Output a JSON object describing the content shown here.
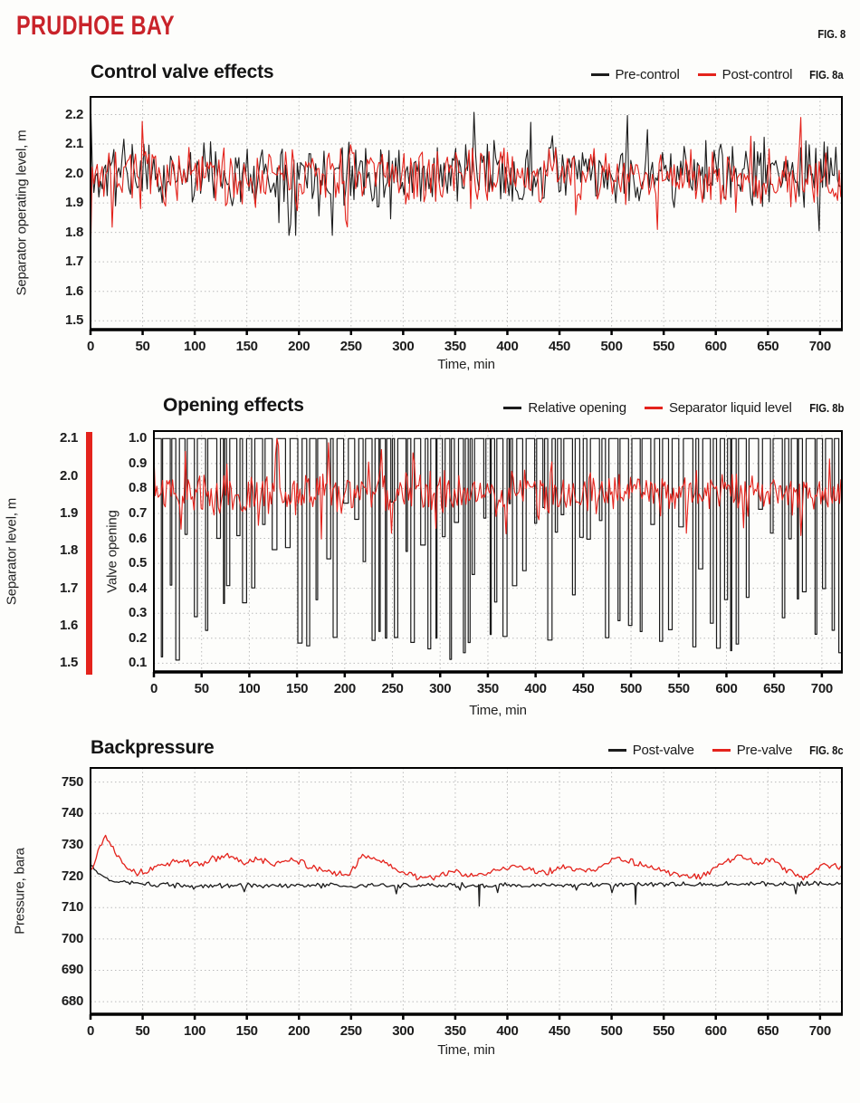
{
  "header": {
    "title": "PRUDHOE BAY",
    "fig_label": "FIG. 8"
  },
  "colors": {
    "brand_red": "#c9232a",
    "series_black": "#1c1c1c",
    "series_red": "#e4231c",
    "grid": "#bcbcbc",
    "axis": "#000000"
  },
  "chart_data": [
    {
      "id": "fig8a",
      "type": "line",
      "title": "Control valve effects",
      "fig_label": "FIG. 8a",
      "xlabel": "Time, min",
      "ylabel": "Separator operating level, m",
      "x_ticks": [
        0,
        50,
        100,
        150,
        200,
        250,
        300,
        350,
        400,
        450,
        500,
        550,
        600,
        650,
        700
      ],
      "x_range": [
        0,
        721
      ],
      "y_ticks": [
        "2.2",
        "2.1",
        "2.0",
        "1.9",
        "1.8",
        "1.7",
        "1.6",
        "1.5"
      ],
      "y_range": [
        1.47,
        2.26
      ],
      "grid": true,
      "legend_position": "top-right",
      "legend": [
        {
          "label": "Pre-control",
          "color": "#1c1c1c"
        },
        {
          "label": "Post-control",
          "color": "#e4231c"
        }
      ],
      "series": [
        {
          "name": "Pre-control",
          "color": "#1c1c1c",
          "width": 1.1,
          "gen": {
            "kind": "noisy",
            "seed": 11,
            "step": 1.6,
            "base": 2.0,
            "noise": 0.08,
            "spike_prob": 0.06,
            "spike_amp": 0.16,
            "start": 2.26,
            "clip": [
              1.79,
              2.26
            ]
          }
        },
        {
          "name": "Post-control",
          "color": "#e4231c",
          "width": 1.1,
          "gen": {
            "kind": "noisy",
            "seed": 7,
            "step": 1.6,
            "base": 1.99,
            "noise": 0.075,
            "spike_prob": 0.05,
            "spike_amp": 0.13,
            "start": 1.7,
            "clip": [
              1.81,
              2.21
            ]
          }
        }
      ]
    },
    {
      "id": "fig8b",
      "type": "line",
      "title": "Opening effects",
      "fig_label": "FIG. 8b",
      "xlabel": "Time, min",
      "ylabel": "Valve opening",
      "ylabel2": "Separator level, m",
      "x_ticks": [
        0,
        50,
        100,
        150,
        200,
        250,
        300,
        350,
        400,
        450,
        500,
        550,
        600,
        650,
        700
      ],
      "x_range": [
        0,
        721
      ],
      "y_ticks": [
        "1.0",
        "0.9",
        "0.8",
        "0.7",
        "0.6",
        "0.5",
        "0.4",
        "0.3",
        "0.2",
        "0.1"
      ],
      "y_range": [
        0.065,
        1.03
      ],
      "y2_ticks": [
        "2.1",
        "2.0",
        "1.9",
        "1.8",
        "1.7",
        "1.6",
        "1.5"
      ],
      "y2_map": {
        "m_min": 1.5,
        "m_max": 2.1,
        "v_min": 0.1,
        "v_max": 1.0
      },
      "grid": true,
      "legend_position": "top-right",
      "legend": [
        {
          "label": "Relative opening",
          "color": "#1c1c1c"
        },
        {
          "label": "Separator liquid level",
          "color": "#e4231c"
        }
      ],
      "series": [
        {
          "name": "Relative opening",
          "color": "#1c1c1c",
          "width": 1.2,
          "gen": {
            "kind": "valve",
            "seed": 3,
            "high": 1.0,
            "dip_min": 0.1,
            "dip_max": 0.75,
            "hold_min": 2,
            "hold_max": 10,
            "dip_len_min": 1,
            "dip_len_max": 5
          }
        },
        {
          "name": "Separator liquid level",
          "color": "#e4231c",
          "width": 1.1,
          "unit": "m",
          "gen": {
            "kind": "noisy",
            "seed": 5,
            "step": 1.5,
            "base": 1.955,
            "noise": 0.045,
            "spike_prob": 0.07,
            "spike_amp": 0.09,
            "start": 2.06,
            "clip": [
              1.79,
              2.1
            ]
          }
        }
      ]
    },
    {
      "id": "fig8c",
      "type": "line",
      "title": "Backpressure",
      "fig_label": "FIG. 8c",
      "xlabel": "Time, min",
      "ylabel": "Pressure, bara",
      "x_ticks": [
        0,
        50,
        100,
        150,
        200,
        250,
        300,
        350,
        400,
        450,
        500,
        550,
        600,
        650,
        700
      ],
      "x_range": [
        0,
        721
      ],
      "y_ticks": [
        "750",
        "740",
        "730",
        "720",
        "710",
        "700",
        "690",
        "680"
      ],
      "y_range": [
        676,
        754.5
      ],
      "grid": true,
      "legend_position": "top-right",
      "legend": [
        {
          "label": "Post-valve",
          "color": "#1c1c1c"
        },
        {
          "label": "Pre-valve",
          "color": "#e4231c"
        }
      ],
      "series": [
        {
          "name": "Post-valve",
          "color": "#1c1c1c",
          "width": 1.3,
          "gen": {
            "kind": "noisy-keypoints",
            "seed": 9,
            "step": 1.8,
            "noise": 0.6,
            "spike_prob": 0.03,
            "spike_amp": 2.2,
            "spike_dir": -1,
            "keypoints": [
              [
                0,
                723.5
              ],
              [
                8,
                720.5
              ],
              [
                20,
                718.5
              ],
              [
                45,
                717.5
              ],
              [
                90,
                717
              ],
              [
                200,
                717
              ],
              [
                300,
                717
              ],
              [
                400,
                717.2
              ],
              [
                500,
                717.3
              ],
              [
                600,
                717.5
              ],
              [
                721,
                717.5
              ]
            ],
            "downspikes": [
              [
                373,
                710.5
              ],
              [
                523,
                711
              ]
            ]
          }
        },
        {
          "name": "Pre-valve",
          "color": "#e4231c",
          "width": 1.3,
          "gen": {
            "kind": "noisy-keypoints",
            "seed": 13,
            "step": 1.8,
            "noise": 0.8,
            "keypoints": [
              [
                0,
                722
              ],
              [
                6,
                727
              ],
              [
                14,
                733
              ],
              [
                22,
                729
              ],
              [
                32,
                724
              ],
              [
                45,
                721
              ],
              [
                58,
                722
              ],
              [
                72,
                724
              ],
              [
                88,
                725
              ],
              [
                102,
                723.5
              ],
              [
                118,
                725.5
              ],
              [
                132,
                726.5
              ],
              [
                148,
                724
              ],
              [
                162,
                725.5
              ],
              [
                178,
                723.5
              ],
              [
                192,
                726
              ],
              [
                204,
                724
              ],
              [
                218,
                722
              ],
              [
                234,
                721
              ],
              [
                248,
                720.5
              ],
              [
                262,
                727
              ],
              [
                274,
                725.5
              ],
              [
                288,
                723
              ],
              [
                302,
                721
              ],
              [
                318,
                719.5
              ],
              [
                334,
                720
              ],
              [
                348,
                721.5
              ],
              [
                362,
                720
              ],
              [
                376,
                721
              ],
              [
                392,
                722
              ],
              [
                406,
                723
              ],
              [
                420,
                722.5
              ],
              [
                436,
                721
              ],
              [
                452,
                723
              ],
              [
                466,
                722
              ],
              [
                480,
                721.5
              ],
              [
                494,
                724
              ],
              [
                506,
                726
              ],
              [
                516,
                725
              ],
              [
                530,
                723.5
              ],
              [
                544,
                722
              ],
              [
                556,
                721
              ],
              [
                570,
                720
              ],
              [
                584,
                719.5
              ],
              [
                598,
                722
              ],
              [
                612,
                725
              ],
              [
                624,
                726.5
              ],
              [
                634,
                725
              ],
              [
                644,
                724
              ],
              [
                654,
                726
              ],
              [
                664,
                722.5
              ],
              [
                674,
                721
              ],
              [
                684,
                719
              ],
              [
                694,
                721.5
              ],
              [
                704,
                724
              ],
              [
                714,
                723
              ],
              [
                721,
                722.5
              ]
            ]
          }
        }
      ]
    }
  ]
}
